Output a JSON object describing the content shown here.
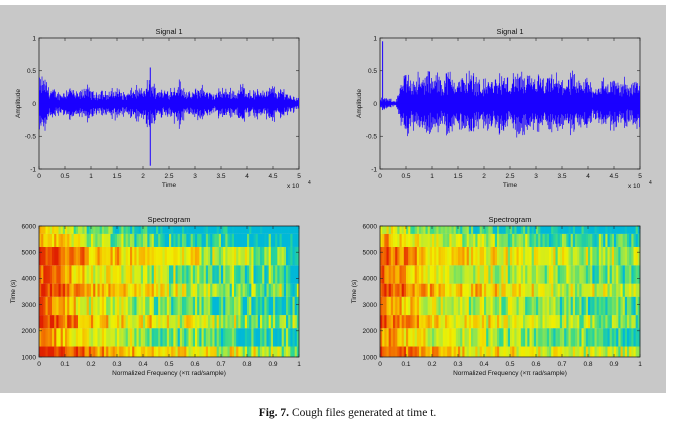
{
  "figure": {
    "caption_label": "Fig. 7.",
    "caption_text": "Cough files generated at time t."
  },
  "chart_data": [
    {
      "type": "line",
      "title": "Signal 1",
      "xlabel": "Time",
      "ylabel": "Amplitude",
      "xlim": [
        0,
        50000
      ],
      "ylim": [
        -1,
        1
      ],
      "xticks": [
        0,
        0.5,
        1,
        1.5,
        2,
        2.5,
        3,
        3.5,
        4,
        4.5,
        5
      ],
      "xtick_labels": [
        "0",
        "0.5",
        "1",
        "1.5",
        "2",
        "2.5",
        "3",
        "3.5",
        "4",
        "4.5",
        "5"
      ],
      "x_exponent": "x 10",
      "x_exponent_power": "4",
      "yticks": [
        -1,
        -0.5,
        0,
        0.5,
        1
      ],
      "ytick_labels": [
        "-1",
        "-0.5",
        "0",
        "0.5",
        "1"
      ],
      "color": "#1a00ff",
      "envelope": {
        "x": [
          0,
          1000,
          2000,
          3000,
          4000,
          5000,
          6000,
          7000,
          8000,
          9000,
          10000,
          11000,
          12000,
          13000,
          14000,
          15000,
          16000,
          17000,
          18000,
          19000,
          20000,
          21000,
          22000,
          23000,
          24000,
          25000,
          26000,
          27000,
          28000,
          29000,
          30000,
          31000,
          32000,
          33000,
          34000,
          35000,
          36000,
          37000,
          38000,
          39000,
          40000,
          41000,
          42000,
          43000,
          44000,
          45000,
          46000,
          47000,
          48000,
          49000,
          50000
        ],
        "amplitude": [
          0.45,
          0.5,
          0.3,
          0.25,
          0.2,
          0.25,
          0.35,
          0.2,
          0.22,
          0.35,
          0.25,
          0.18,
          0.28,
          0.2,
          0.25,
          0.3,
          0.22,
          0.2,
          0.28,
          0.3,
          0.25,
          0.45,
          0.35,
          0.3,
          0.25,
          0.28,
          0.35,
          0.42,
          0.3,
          0.18,
          0.25,
          0.35,
          0.28,
          0.2,
          0.18,
          0.3,
          0.25,
          0.28,
          0.22,
          0.38,
          0.3,
          0.22,
          0.25,
          0.3,
          0.25,
          0.35,
          0.22,
          0.3,
          0.18,
          0.15,
          0.12
        ],
        "spikes": [
          {
            "x": 21400,
            "min": -0.95,
            "max": 0.55
          }
        ]
      }
    },
    {
      "type": "line",
      "title": "Signal 1",
      "xlabel": "Time",
      "ylabel": "Amplitude",
      "xlim": [
        0,
        50000
      ],
      "ylim": [
        -1,
        1
      ],
      "xticks": [
        0,
        0.5,
        1,
        1.5,
        2,
        2.5,
        3,
        3.5,
        4,
        4.5,
        5
      ],
      "xtick_labels": [
        "0",
        "0.5",
        "1",
        "1.5",
        "2",
        "2.5",
        "3",
        "3.5",
        "4",
        "4.5",
        "5"
      ],
      "x_exponent": "x 10",
      "x_exponent_power": "4",
      "yticks": [
        -1,
        -0.5,
        0,
        0.5,
        1
      ],
      "ytick_labels": [
        "-1",
        "-0.5",
        "0",
        "0.5",
        "1"
      ],
      "color": "#1a00ff",
      "envelope": {
        "x": [
          0,
          1000,
          2000,
          3000,
          4000,
          5000,
          6000,
          7000,
          8000,
          9000,
          10000,
          11000,
          12000,
          13000,
          14000,
          15000,
          16000,
          17000,
          18000,
          19000,
          20000,
          21000,
          22000,
          23000,
          24000,
          25000,
          26000,
          27000,
          28000,
          29000,
          30000,
          31000,
          32000,
          33000,
          34000,
          35000,
          36000,
          37000,
          38000,
          39000,
          40000,
          41000,
          42000,
          43000,
          44000,
          45000,
          46000,
          47000,
          48000,
          49000,
          50000
        ],
        "amplitude": [
          0.1,
          0.1,
          0.08,
          0.05,
          0.35,
          0.6,
          0.5,
          0.55,
          0.45,
          0.6,
          0.5,
          0.55,
          0.45,
          0.6,
          0.55,
          0.45,
          0.5,
          0.6,
          0.55,
          0.45,
          0.4,
          0.5,
          0.45,
          0.55,
          0.5,
          0.45,
          0.55,
          0.6,
          0.45,
          0.5,
          0.55,
          0.45,
          0.4,
          0.55,
          0.5,
          0.45,
          0.5,
          0.55,
          0.35,
          0.45,
          0.5,
          0.3,
          0.4,
          0.45,
          0.4,
          0.5,
          0.35,
          0.45,
          0.4,
          0.5,
          0.4
        ],
        "spikes": [
          {
            "x": 500,
            "min": -0.1,
            "max": 0.95
          }
        ]
      }
    },
    {
      "type": "heatmap",
      "title": "Spectrogram",
      "xlabel": "Normalized Frequency  (×π rad/sample)",
      "ylabel": "Time (s)",
      "xlim": [
        0,
        1
      ],
      "ylim": [
        1000,
        6000
      ],
      "xticks": [
        0,
        0.1,
        0.2,
        0.3,
        0.4,
        0.5,
        0.6,
        0.7,
        0.8,
        0.9,
        1
      ],
      "xtick_labels": [
        "0",
        "0.1",
        "0.2",
        "0.3",
        "0.4",
        "0.5",
        "0.6",
        "0.7",
        "0.8",
        "0.9",
        "1"
      ],
      "yticks": [
        1000,
        2000,
        3000,
        4000,
        5000,
        6000
      ],
      "ytick_labels": [
        "1000",
        "2000",
        "3000",
        "4000",
        "5000",
        "6000"
      ],
      "colormap": [
        "#00b8d8",
        "#30d890",
        "#a8e840",
        "#f0f000",
        "#f8b000",
        "#f06000",
        "#e02000"
      ],
      "columns": 120,
      "band_boundaries": [
        1000,
        1400,
        2100,
        2600,
        3300,
        3800,
        4500,
        5200,
        5700,
        6000
      ],
      "band_base": [
        0.85,
        0.55,
        0.75,
        0.55,
        0.75,
        0.6,
        0.78,
        0.45,
        0.3
      ],
      "decay_with_x": 0.55
    },
    {
      "type": "heatmap",
      "title": "Spectrogram",
      "xlabel": "Normalized Frequency  (×π rad/sample)",
      "ylabel": "Time (s)",
      "xlim": [
        0,
        1
      ],
      "ylim": [
        1000,
        6000
      ],
      "xticks": [
        0,
        0.1,
        0.2,
        0.3,
        0.4,
        0.5,
        0.6,
        0.7,
        0.8,
        0.9,
        1
      ],
      "xtick_labels": [
        "0",
        "0.1",
        "0.2",
        "0.3",
        "0.4",
        "0.5",
        "0.6",
        "0.7",
        "0.8",
        "0.9",
        "1"
      ],
      "yticks": [
        1000,
        2000,
        3000,
        4000,
        5000,
        6000
      ],
      "ytick_labels": [
        "1000",
        "2000",
        "3000",
        "4000",
        "5000",
        "6000"
      ],
      "colormap": [
        "#00b8d8",
        "#30d890",
        "#a8e840",
        "#f0f000",
        "#f8b000",
        "#f06000",
        "#e02000"
      ],
      "columns": 120,
      "band_boundaries": [
        1000,
        1400,
        2100,
        2600,
        3300,
        3800,
        4500,
        5200,
        5700,
        6000
      ],
      "band_base": [
        0.7,
        0.5,
        0.65,
        0.5,
        0.72,
        0.55,
        0.65,
        0.45,
        0.25
      ],
      "decay_with_x": 0.35
    }
  ]
}
